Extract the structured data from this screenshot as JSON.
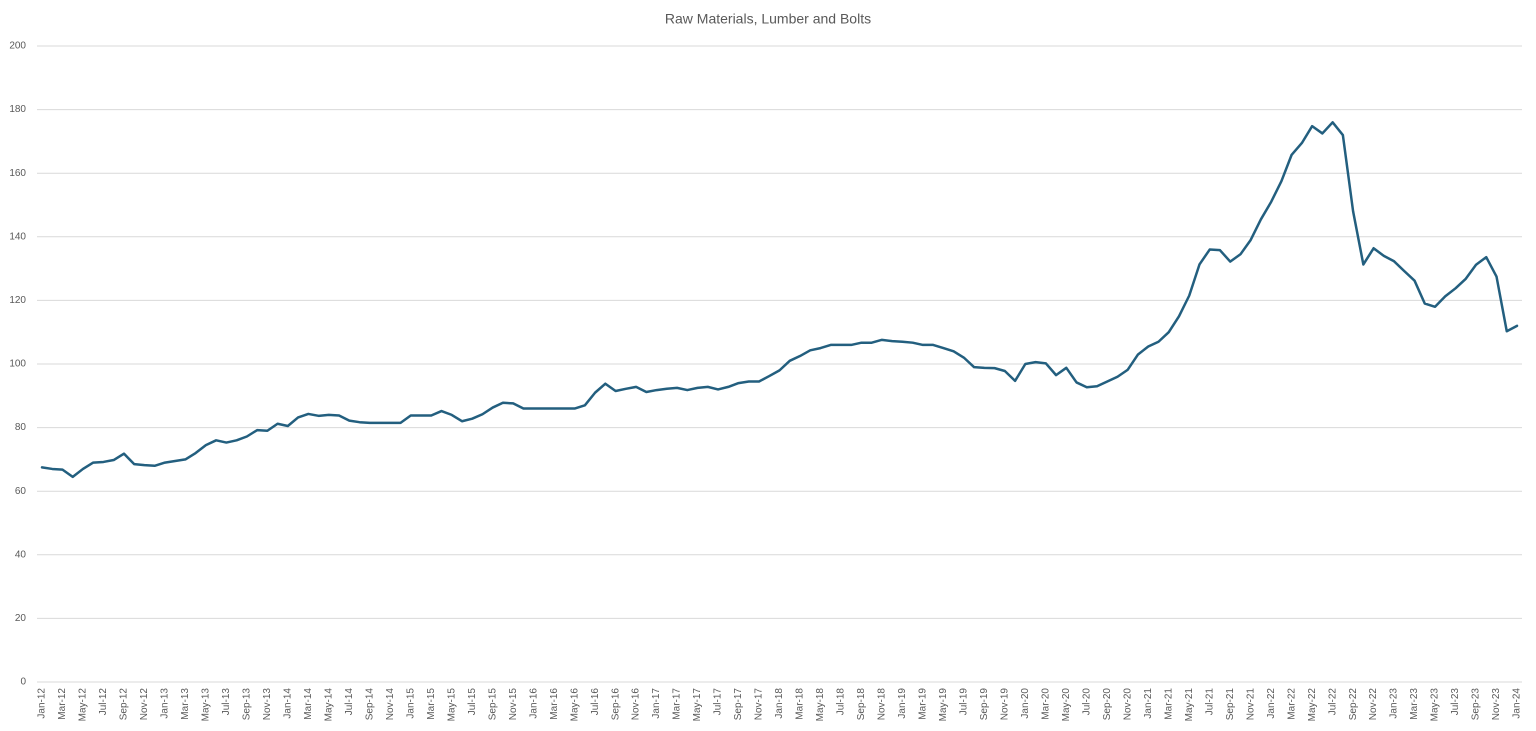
{
  "chart_data": {
    "type": "line",
    "title": "Raw Materials, Lumber and Bolts",
    "categories": [
      "Jan-12",
      null,
      "Mar-12",
      null,
      "May-12",
      null,
      "Jul-12",
      null,
      "Sep-12",
      null,
      "Nov-12",
      null,
      "Jan-13",
      null,
      "Mar-13",
      null,
      "May-13",
      null,
      "Jul-13",
      null,
      "Sep-13",
      null,
      "Nov-13",
      null,
      "Jan-14",
      null,
      "Mar-14",
      null,
      "May-14",
      null,
      "Jul-14",
      null,
      "Sep-14",
      null,
      "Nov-14",
      null,
      "Jan-15",
      null,
      "Mar-15",
      null,
      "May-15",
      null,
      "Jul-15",
      null,
      "Sep-15",
      null,
      "Nov-15",
      null,
      "Jan-16",
      null,
      "Mar-16",
      null,
      "May-16",
      null,
      "Jul-16",
      null,
      "Sep-16",
      null,
      "Nov-16",
      null,
      "Jan-17",
      null,
      "Mar-17",
      null,
      "May-17",
      null,
      "Jul-17",
      null,
      "Sep-17",
      null,
      "Nov-17",
      null,
      "Jan-18",
      null,
      "Mar-18",
      null,
      "May-18",
      null,
      "Jul-18",
      null,
      "Sep-18",
      null,
      "Nov-18",
      null,
      "Jan-19",
      null,
      "Mar-19",
      null,
      "May-19",
      null,
      "Jul-19",
      null,
      "Sep-19",
      null,
      "Nov-19",
      null,
      "Jan-20",
      null,
      "Mar-20",
      null,
      "May-20",
      null,
      "Jul-20",
      null,
      "Sep-20",
      null,
      "Nov-20",
      null,
      "Jan-21",
      null,
      "Mar-21",
      null,
      "May-21",
      null,
      "Jul-21",
      null,
      "Sep-21",
      null,
      "Nov-21",
      null,
      "Jan-22",
      null,
      "Mar-22",
      null,
      "May-22",
      null,
      "Jul-22",
      null,
      "Sep-22",
      null,
      "Nov-22",
      null,
      "Jan-23",
      null,
      "Mar-23",
      null,
      "May-23",
      null,
      "Jul-23",
      null,
      "Sep-23",
      null,
      "Nov-23",
      null,
      "Jan-24"
    ],
    "values": [
      67.5,
      67,
      66.8,
      64.5,
      67,
      69,
      69.2,
      69.8,
      71.8,
      68.5,
      68.2,
      68,
      69,
      69.5,
      70,
      72,
      74.5,
      76,
      75.3,
      76,
      77.2,
      79.2,
      79,
      81.2,
      80.5,
      83.2,
      84.3,
      83.7,
      84,
      83.8,
      82.2,
      81.7,
      81.5,
      81.5,
      81.5,
      81.5,
      83.8,
      83.8,
      83.8,
      85.2,
      84,
      82,
      82.8,
      84.2,
      86.3,
      87.8,
      87.6,
      86,
      86,
      86,
      86,
      86,
      86,
      87,
      91,
      93.8,
      91.5,
      92.2,
      92.8,
      91.2,
      91.8,
      92.2,
      92.5,
      91.8,
      92.5,
      92.8,
      92,
      92.8,
      94,
      94.5,
      94.5,
      96.2,
      98,
      101,
      102.5,
      104.3,
      105,
      106,
      106,
      106,
      106.7,
      106.7,
      107.6,
      107.2,
      107,
      106.7,
      106,
      106,
      105,
      104,
      102,
      99,
      98.8,
      98.7,
      97.8,
      94.7,
      100,
      100.6,
      100.2,
      96.5,
      98.8,
      94.2,
      92.7,
      93,
      94.5,
      96,
      98.2,
      103,
      105.5,
      107,
      110,
      115,
      121.5,
      131.3,
      136,
      135.8,
      132.2,
      134.5,
      139,
      145.5,
      151,
      157.5,
      165.8,
      169.5,
      174.8,
      172.5,
      176,
      172,
      148,
      131.3,
      136.4,
      134,
      132.3,
      129.2,
      126.2,
      119,
      118,
      121.3,
      123.8,
      126.8,
      131.2,
      133.6,
      127.5,
      110.3,
      112
    ],
    "color": "#235f7f",
    "ylim": [
      0,
      200
    ],
    "yticks": [
      0,
      20,
      40,
      60,
      80,
      100,
      120,
      140,
      160,
      180,
      200
    ],
    "grid": true
  }
}
